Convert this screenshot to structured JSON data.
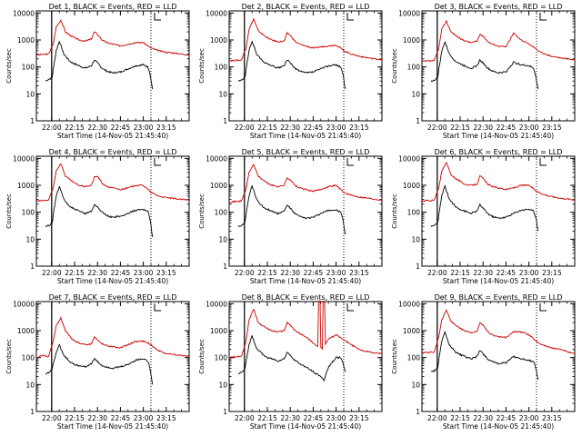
{
  "figure_title": "",
  "colors": {
    "events": "#000000",
    "lld": "#cc0000",
    "axes": "#000000"
  },
  "chart_data": {
    "type": "line",
    "yscale": "log",
    "ylim": [
      1,
      12000
    ],
    "xlim_minutes": [
      -10,
      90
    ],
    "ylabel": "Counts/sec",
    "xlabel": "Start Time (14-Nov-05 21:45:40)",
    "y_tick_values": [
      1,
      10,
      100,
      1000,
      10000
    ],
    "y_tick_labels": [
      "1",
      "10",
      "100",
      "1000",
      "10000"
    ],
    "x_tick_values": [
      0,
      15,
      30,
      45,
      60,
      75
    ],
    "x_tick_labels": [
      "22:00",
      "22:15",
      "22:30",
      "22:45",
      "23:00",
      "23:15"
    ],
    "legend_text": "",
    "markers_minutes": [
      0,
      65
    ],
    "panels": [
      {
        "title": "Det 1, BLACK = Events, RED = LLD",
        "lld": {
          "x": [
            -10,
            -2,
            1,
            3,
            6,
            9,
            12,
            15,
            18,
            22,
            26,
            28,
            30,
            33,
            36,
            40,
            45,
            50,
            55,
            60,
            63,
            65,
            70,
            75,
            80,
            85,
            90
          ],
          "y": [
            280,
            300,
            700,
            3000,
            5500,
            2000,
            1500,
            1200,
            1000,
            900,
            1100,
            2000,
            1600,
            1000,
            800,
            700,
            600,
            700,
            800,
            800,
            600,
            500,
            400,
            350,
            330,
            300,
            280
          ]
        },
        "events": {
          "x": [
            -4,
            -2,
            0,
            0.5,
            1,
            3,
            5,
            8,
            12,
            15,
            18,
            22,
            26,
            28,
            30,
            33,
            36,
            40,
            45,
            50,
            55,
            60,
            63,
            64,
            65,
            66
          ],
          "y": [
            30,
            35,
            38,
            45,
            80,
            400,
            900,
            300,
            160,
            130,
            110,
            90,
            110,
            180,
            140,
            90,
            70,
            60,
            65,
            85,
            110,
            120,
            100,
            70,
            35,
            15
          ]
        }
      },
      {
        "title": "Det 2, BLACK = Events, RED = LLD",
        "lld": {
          "x": [
            -10,
            -2,
            1,
            3,
            6,
            9,
            12,
            15,
            18,
            22,
            26,
            28,
            30,
            33,
            36,
            40,
            45,
            50,
            55,
            60,
            63,
            65,
            70,
            75,
            80,
            85,
            90
          ],
          "y": [
            170,
            180,
            500,
            2500,
            6000,
            2200,
            1600,
            1200,
            1000,
            850,
            900,
            1800,
            1500,
            900,
            700,
            600,
            500,
            550,
            600,
            650,
            500,
            400,
            300,
            250,
            220,
            200,
            190
          ]
        },
        "events": {
          "x": [
            -4,
            -2,
            0,
            0.5,
            1,
            3,
            5,
            8,
            12,
            15,
            18,
            22,
            26,
            28,
            30,
            33,
            36,
            40,
            45,
            50,
            55,
            60,
            63,
            64,
            65,
            66
          ],
          "y": [
            30,
            32,
            38,
            45,
            80,
            400,
            900,
            300,
            160,
            130,
            110,
            90,
            110,
            190,
            140,
            90,
            70,
            60,
            65,
            85,
            110,
            120,
            100,
            70,
            35,
            15
          ]
        }
      },
      {
        "title": "Det 3, BLACK = Events, RED = LLD",
        "lld": {
          "x": [
            -10,
            -2,
            1,
            3,
            6,
            9,
            12,
            15,
            18,
            22,
            26,
            28,
            30,
            33,
            36,
            40,
            45,
            50,
            55,
            60,
            63,
            65,
            70,
            75,
            80,
            85,
            90
          ],
          "y": [
            160,
            170,
            500,
            2500,
            5000,
            2000,
            1500,
            1100,
            950,
            800,
            900,
            1600,
            1400,
            900,
            700,
            600,
            550,
            1800,
            1000,
            700,
            550,
            450,
            300,
            250,
            220,
            200,
            180
          ]
        },
        "events": {
          "x": [
            -4,
            -2,
            0,
            0.5,
            1,
            3,
            5,
            8,
            12,
            15,
            18,
            22,
            26,
            28,
            30,
            33,
            36,
            40,
            45,
            50,
            55,
            60,
            63,
            64,
            65,
            66
          ],
          "y": [
            30,
            32,
            38,
            45,
            80,
            380,
            850,
            300,
            160,
            130,
            110,
            90,
            110,
            180,
            140,
            90,
            70,
            60,
            65,
            150,
            120,
            110,
            90,
            60,
            30,
            15
          ]
        }
      },
      {
        "title": "Det 4, BLACK = Events, RED = LLD",
        "lld": {
          "x": [
            -10,
            -2,
            1,
            3,
            6,
            9,
            12,
            15,
            18,
            22,
            26,
            28,
            30,
            33,
            36,
            40,
            45,
            50,
            55,
            60,
            63,
            65,
            70,
            75,
            80,
            85,
            90
          ],
          "y": [
            260,
            280,
            800,
            3500,
            6500,
            2200,
            1600,
            1200,
            1000,
            900,
            1000,
            2000,
            2200,
            1200,
            900,
            800,
            700,
            800,
            1000,
            1000,
            700,
            550,
            400,
            350,
            320,
            300,
            280
          ]
        },
        "events": {
          "x": [
            -4,
            -2,
            0,
            0.5,
            1,
            3,
            5,
            8,
            12,
            15,
            18,
            22,
            26,
            28,
            30,
            33,
            36,
            40,
            45,
            50,
            55,
            60,
            63,
            64,
            65,
            66
          ],
          "y": [
            30,
            32,
            38,
            45,
            80,
            400,
            900,
            300,
            160,
            130,
            110,
            90,
            110,
            190,
            160,
            100,
            75,
            65,
            70,
            90,
            120,
            130,
            110,
            70,
            35,
            12
          ]
        }
      },
      {
        "title": "Det 5, BLACK = Events, RED = LLD",
        "lld": {
          "x": [
            -10,
            -2,
            1,
            3,
            6,
            9,
            12,
            15,
            18,
            22,
            26,
            28,
            30,
            33,
            36,
            40,
            45,
            50,
            55,
            60,
            63,
            65,
            70,
            75,
            80,
            85,
            90
          ],
          "y": [
            240,
            260,
            700,
            3000,
            6000,
            2200,
            1600,
            1200,
            1000,
            900,
            1000,
            1900,
            1600,
            1000,
            800,
            700,
            600,
            700,
            900,
            1000,
            700,
            550,
            420,
            370,
            340,
            310,
            280
          ]
        },
        "events": {
          "x": [
            -4,
            -2,
            0,
            0.5,
            1,
            3,
            5,
            8,
            12,
            15,
            18,
            22,
            26,
            28,
            30,
            33,
            36,
            40,
            45,
            50,
            55,
            60,
            63,
            64,
            65,
            66
          ],
          "y": [
            30,
            32,
            38,
            45,
            80,
            400,
            950,
            300,
            160,
            130,
            110,
            90,
            110,
            190,
            140,
            90,
            70,
            60,
            65,
            90,
            120,
            120,
            100,
            70,
            35,
            15
          ]
        }
      },
      {
        "title": "Det 6, BLACK = Events, RED = LLD",
        "lld": {
          "x": [
            -10,
            -2,
            1,
            3,
            6,
            9,
            12,
            15,
            18,
            22,
            26,
            28,
            30,
            33,
            36,
            40,
            45,
            50,
            55,
            60,
            63,
            65,
            70,
            75,
            80,
            85,
            90
          ],
          "y": [
            260,
            280,
            800,
            3500,
            7000,
            2500,
            1800,
            1400,
            1100,
            1000,
            1100,
            2200,
            1800,
            1100,
            900,
            800,
            700,
            800,
            1000,
            1000,
            750,
            600,
            450,
            380,
            340,
            310,
            290
          ]
        },
        "events": {
          "x": [
            -4,
            -2,
            0,
            0.5,
            1,
            3,
            5,
            8,
            12,
            15,
            18,
            22,
            26,
            28,
            30,
            33,
            36,
            40,
            45,
            50,
            55,
            60,
            63,
            64,
            65,
            66
          ],
          "y": [
            30,
            32,
            38,
            45,
            80,
            400,
            950,
            300,
            160,
            130,
            110,
            90,
            110,
            190,
            140,
            90,
            70,
            60,
            65,
            90,
            120,
            130,
            110,
            80,
            50,
            20
          ]
        }
      },
      {
        "title": "Det 7, BLACK = Events, RED = LLD",
        "lld": {
          "x": [
            -10,
            -6,
            -2,
            1,
            3,
            6,
            9,
            12,
            15,
            18,
            22,
            26,
            28,
            30,
            33,
            36,
            40,
            45,
            50,
            55,
            60,
            63,
            65,
            70,
            75,
            80,
            85,
            90
          ],
          "y": [
            100,
            120,
            110,
            400,
            1500,
            3000,
            1000,
            600,
            400,
            350,
            300,
            320,
            600,
            450,
            320,
            280,
            250,
            230,
            300,
            400,
            400,
            350,
            300,
            180,
            140,
            130,
            120,
            110
          ]
        },
        "events": {
          "x": [
            -4,
            -2,
            0,
            0.5,
            1,
            3,
            5,
            8,
            12,
            15,
            18,
            22,
            26,
            28,
            30,
            33,
            36,
            40,
            45,
            50,
            55,
            60,
            63,
            64,
            65,
            66
          ],
          "y": [
            25,
            28,
            35,
            40,
            60,
            150,
            300,
            120,
            70,
            55,
            50,
            45,
            60,
            90,
            70,
            50,
            45,
            40,
            45,
            55,
            80,
            90,
            75,
            50,
            25,
            10
          ]
        }
      },
      {
        "title": "Det 8, BLACK = Events, RED = LLD",
        "lld": {
          "x": [
            -10,
            -2,
            1,
            3,
            6,
            9,
            12,
            15,
            18,
            22,
            26,
            28,
            30,
            33,
            36,
            40,
            44,
            46,
            48,
            48.5,
            49.5,
            50,
            51,
            51.5,
            52.5,
            53,
            54,
            55,
            58,
            60,
            63,
            65,
            70,
            75,
            80,
            85,
            90
          ],
          "y": [
            100,
            110,
            400,
            2500,
            6500,
            2000,
            1500,
            1200,
            1000,
            900,
            1000,
            2000,
            1600,
            1000,
            800,
            600,
            400,
            300,
            250,
            12000,
            12000,
            250,
            200,
            12000,
            12000,
            300,
            400,
            500,
            600,
            700,
            550,
            450,
            300,
            200,
            170,
            150,
            140
          ]
        },
        "events": {
          "x": [
            -4,
            -2,
            0,
            0.5,
            1,
            3,
            5,
            8,
            12,
            15,
            18,
            22,
            26,
            28,
            30,
            33,
            36,
            40,
            45,
            50,
            52,
            55,
            60,
            63,
            64,
            65,
            66
          ],
          "y": [
            25,
            28,
            35,
            40,
            70,
            300,
            650,
            220,
            130,
            100,
            90,
            75,
            90,
            160,
            120,
            80,
            60,
            45,
            30,
            20,
            14,
            45,
            100,
            100,
            80,
            45,
            30
          ]
        }
      },
      {
        "title": "Det 9, BLACK = Events, RED = LLD",
        "lld": {
          "x": [
            -10,
            -2,
            1,
            3,
            6,
            9,
            12,
            15,
            18,
            22,
            26,
            28,
            30,
            33,
            36,
            40,
            45,
            50,
            55,
            60,
            63,
            65,
            70,
            75,
            80,
            85,
            90
          ],
          "y": [
            150,
            160,
            600,
            2500,
            6000,
            2200,
            1600,
            1200,
            1000,
            850,
            900,
            2000,
            1600,
            900,
            700,
            600,
            550,
            900,
            900,
            700,
            500,
            400,
            280,
            230,
            200,
            170,
            140
          ]
        },
        "events": {
          "x": [
            -4,
            -2,
            0,
            0.5,
            1,
            3,
            5,
            8,
            12,
            15,
            18,
            22,
            26,
            28,
            30,
            33,
            36,
            40,
            45,
            50,
            55,
            60,
            63,
            64,
            65,
            66
          ],
          "y": [
            30,
            32,
            38,
            45,
            80,
            400,
            900,
            300,
            160,
            130,
            110,
            90,
            110,
            190,
            140,
            90,
            70,
            60,
            65,
            110,
            90,
            80,
            70,
            55,
            30,
            15
          ]
        }
      }
    ]
  }
}
